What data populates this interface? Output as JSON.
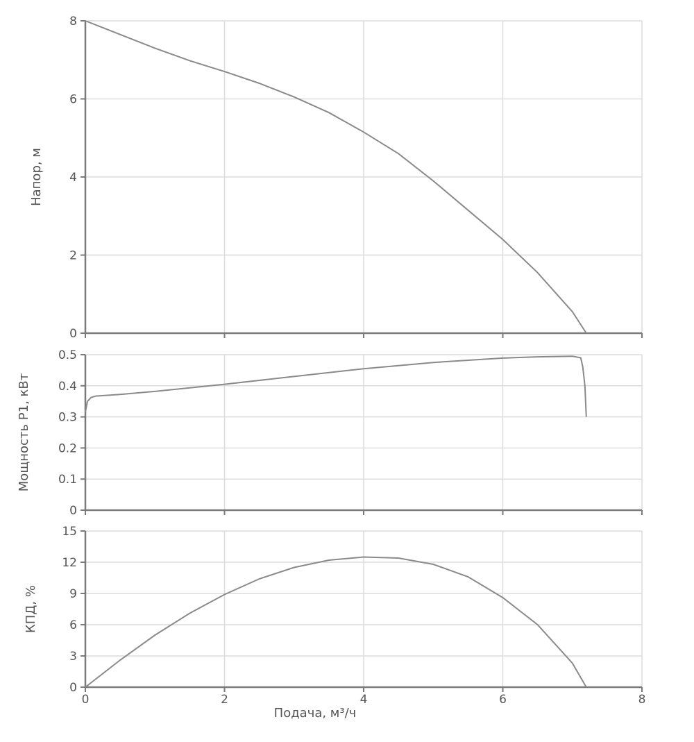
{
  "chart_data": [
    {
      "type": "line",
      "ylabel": "Напор, м",
      "xlim": [
        0,
        8
      ],
      "ylim": [
        0,
        8
      ],
      "y_ticks": [
        "0",
        "2",
        "4",
        "6",
        "8"
      ],
      "x_ticks": [
        0,
        2,
        4,
        6,
        8
      ],
      "grid": true,
      "series": [
        {
          "x": [
            0,
            0.5,
            1,
            1.5,
            2,
            2.5,
            3,
            3.5,
            4,
            4.5,
            5,
            5.5,
            6,
            6.5,
            7,
            7.2
          ],
          "y": [
            8.0,
            7.65,
            7.3,
            6.98,
            6.7,
            6.4,
            6.05,
            5.65,
            5.15,
            4.6,
            3.9,
            3.15,
            2.4,
            1.55,
            0.55,
            0
          ]
        }
      ]
    },
    {
      "type": "line",
      "ylabel": "Мощность P1, кВт",
      "xlim": [
        0,
        8
      ],
      "ylim": [
        0,
        0.5
      ],
      "y_ticks": [
        "0",
        "0.1",
        "0.2",
        "0.3",
        "0.4",
        "0.5"
      ],
      "x_ticks": [
        0,
        2,
        4,
        6,
        8
      ],
      "grid": true,
      "series": [
        {
          "x": [
            0,
            0.03,
            0.08,
            0.15,
            0.5,
            1,
            2,
            3,
            4,
            5,
            6,
            6.5,
            7,
            7.12,
            7.15,
            7.18,
            7.2
          ],
          "y": [
            0.315,
            0.35,
            0.362,
            0.367,
            0.372,
            0.382,
            0.405,
            0.43,
            0.455,
            0.475,
            0.489,
            0.493,
            0.495,
            0.49,
            0.46,
            0.4,
            0.3
          ]
        }
      ]
    },
    {
      "type": "line",
      "ylabel": "КПД, %",
      "xlabel": "Подача, м³/ч",
      "xlim": [
        0,
        8
      ],
      "ylim": [
        0,
        15
      ],
      "y_ticks": [
        "0",
        "3",
        "6",
        "9",
        "12",
        "15"
      ],
      "x_ticks": [
        "0",
        "2",
        "4",
        "6",
        "8"
      ],
      "grid": true,
      "series": [
        {
          "x": [
            0,
            0.5,
            1,
            1.5,
            2,
            2.5,
            3,
            3.5,
            4,
            4.5,
            5,
            5.5,
            6,
            6.5,
            7,
            7.2
          ],
          "y": [
            0,
            2.6,
            5.0,
            7.1,
            8.9,
            10.4,
            11.5,
            12.2,
            12.5,
            12.4,
            11.8,
            10.6,
            8.6,
            6.0,
            2.3,
            0
          ]
        }
      ]
    }
  ]
}
